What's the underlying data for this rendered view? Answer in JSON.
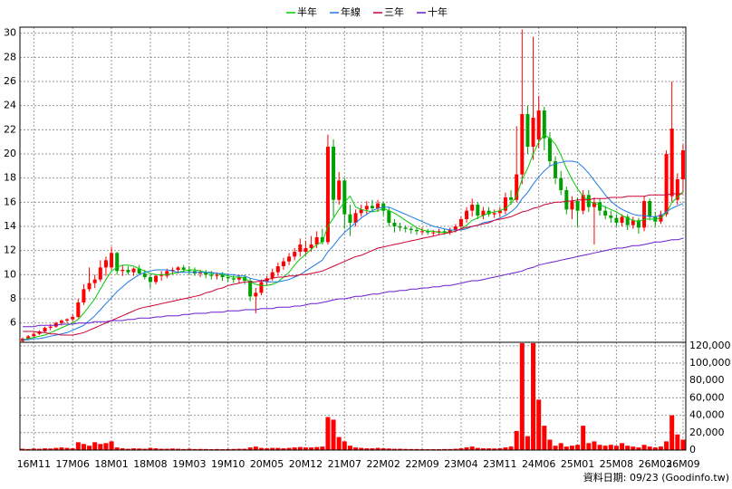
{
  "chart_data": {
    "type": "candlestick",
    "categories": [
      null,
      null,
      "16M11",
      null,
      null,
      null,
      null,
      null,
      null,
      "17M06",
      null,
      null,
      null,
      null,
      null,
      null,
      "18M01",
      null,
      null,
      null,
      null,
      null,
      null,
      "18M08",
      null,
      null,
      null,
      null,
      null,
      null,
      "19M03",
      null,
      null,
      null,
      null,
      null,
      null,
      "19M10",
      null,
      null,
      null,
      null,
      null,
      null,
      "20M05",
      null,
      null,
      null,
      null,
      null,
      null,
      "20M12",
      null,
      null,
      null,
      null,
      null,
      null,
      "21M07",
      null,
      null,
      null,
      null,
      null,
      null,
      "22M02",
      null,
      null,
      null,
      null,
      null,
      null,
      "22M09",
      null,
      null,
      null,
      null,
      null,
      null,
      "23M04",
      null,
      null,
      null,
      null,
      null,
      null,
      "23M11",
      null,
      null,
      null,
      null,
      null,
      null,
      "24M06",
      null,
      null,
      null,
      null,
      null,
      null,
      "25M01",
      null,
      null,
      null,
      null,
      null,
      null,
      "25M08",
      null,
      null,
      null,
      null,
      null,
      null,
      "26M03",
      null,
      null,
      null,
      null,
      "26M09"
    ],
    "open": [
      4.5,
      4.7,
      4.9,
      5.1,
      5.3,
      5.6,
      5.7,
      6.0,
      6.2,
      6.3,
      6.5,
      7.7,
      8.8,
      9.3,
      9.6,
      10.6,
      10.6,
      11.8,
      10.3,
      10.4,
      10.2,
      10.5,
      10.1,
      9.8,
      9.4,
      9.9,
      9.9,
      10.3,
      10.4,
      10.6,
      10.4,
      10.3,
      10.1,
      10.2,
      10.0,
      9.9,
      10.0,
      9.8,
      9.7,
      9.6,
      9.8,
      9.5,
      8.2,
      8.5,
      9.4,
      9.7,
      10.2,
      10.7,
      11.1,
      11.5,
      11.9,
      11.9,
      12.2,
      12.5,
      13.1,
      12.7,
      20.6,
      16.2,
      17.8,
      15.0,
      14.3,
      15.1,
      15.4,
      15.7,
      15.5,
      15.9,
      15.3,
      14.3,
      14.0,
      13.9,
      13.8,
      13.7,
      13.6,
      13.6,
      13.5,
      13.5,
      13.6,
      13.5,
      13.7,
      14.0,
      14.6,
      15.3,
      15.8,
      14.9,
      15.3,
      15.0,
      15.1,
      15.3,
      16.4,
      16.2,
      18.3,
      23.3,
      20.6,
      21.2,
      23.6,
      21.3,
      19.4,
      18.0,
      17.0,
      15.4,
      16.1,
      15.3,
      16.6,
      15.6,
      16.0,
      15.3,
      14.9,
      14.7,
      14.3,
      14.8,
      14.1,
      14.5,
      13.9,
      16.1,
      14.8,
      14.4,
      15.0,
      16.5,
      16.2,
      17.9
    ],
    "high": [
      4.8,
      5.0,
      5.2,
      5.4,
      5.7,
      5.9,
      6.1,
      6.3,
      6.4,
      6.7,
      8.0,
      9.2,
      10.6,
      10.0,
      11.2,
      11.5,
      12.3,
      11.9,
      10.8,
      10.7,
      10.6,
      10.8,
      10.4,
      10.0,
      10.0,
      10.3,
      10.5,
      10.6,
      10.7,
      10.8,
      10.7,
      10.6,
      10.4,
      10.4,
      10.3,
      10.2,
      10.2,
      10.1,
      10.0,
      10.0,
      10.0,
      9.7,
      8.9,
      9.6,
      9.9,
      10.5,
      11.0,
      11.4,
      11.8,
      12.2,
      13.0,
      12.8,
      13.2,
      13.6,
      13.8,
      21.6,
      21.2,
      18.5,
      18.0,
      15.8,
      15.4,
      15.8,
      16.1,
      16.2,
      16.2,
      16.0,
      15.6,
      14.6,
      14.3,
      14.1,
      14.0,
      13.9,
      13.9,
      13.8,
      13.7,
      13.8,
      13.8,
      13.9,
      14.2,
      14.8,
      15.6,
      16.3,
      16.0,
      15.6,
      15.6,
      15.4,
      15.6,
      16.8,
      17.0,
      22.3,
      30.3,
      24.0,
      29.7,
      24.8,
      23.9,
      21.8,
      19.8,
      18.6,
      17.3,
      16.5,
      16.4,
      17.0,
      17.0,
      16.4,
      16.3,
      15.7,
      15.3,
      15.0,
      15.0,
      15.0,
      14.8,
      14.7,
      16.5,
      16.3,
      15.2,
      15.3,
      20.3,
      26.0,
      18.4,
      20.8
    ],
    "low": [
      4.4,
      4.6,
      4.8,
      5.0,
      5.2,
      5.4,
      5.6,
      5.8,
      6.0,
      6.1,
      6.4,
      7.5,
      8.6,
      8.9,
      9.4,
      9.9,
      10.4,
      10.0,
      9.9,
      10.0,
      9.9,
      10.0,
      9.6,
      8.9,
      9.2,
      9.5,
      9.7,
      10.0,
      10.1,
      10.2,
      10.0,
      9.9,
      9.8,
      9.7,
      9.6,
      9.6,
      9.5,
      9.4,
      9.3,
      9.3,
      9.2,
      7.8,
      6.8,
      8.3,
      9.1,
      9.5,
      9.9,
      10.4,
      10.8,
      11.2,
      11.5,
      11.6,
      11.9,
      12.2,
      12.5,
      12.5,
      14.8,
      15.8,
      13.8,
      13.2,
      14.0,
      14.8,
      15.0,
      15.2,
      15.2,
      14.9,
      14.0,
      13.5,
      13.6,
      13.5,
      13.4,
      13.3,
      13.3,
      13.3,
      13.2,
      13.3,
      13.3,
      13.3,
      13.5,
      13.7,
      14.3,
      14.8,
      14.6,
      14.6,
      14.8,
      14.7,
      14.8,
      15.0,
      15.8,
      16.0,
      17.5,
      20.0,
      19.5,
      20.5,
      20.3,
      19.0,
      17.5,
      16.6,
      15.0,
      14.6,
      14.0,
      15.0,
      15.2,
      12.5,
      14.9,
      14.6,
      14.3,
      14.0,
      14.0,
      13.7,
      13.8,
      13.4,
      13.6,
      14.5,
      14.0,
      14.2,
      14.8,
      16.0,
      15.8,
      16.8
    ],
    "close": [
      4.7,
      4.9,
      5.1,
      5.3,
      5.6,
      5.7,
      6.0,
      6.2,
      6.3,
      6.5,
      7.7,
      8.8,
      9.3,
      9.6,
      10.6,
      11.2,
      11.8,
      10.3,
      10.4,
      10.2,
      10.5,
      10.1,
      9.8,
      9.4,
      9.9,
      10.0,
      10.3,
      10.4,
      10.6,
      10.4,
      10.3,
      10.1,
      10.2,
      10.0,
      9.9,
      10.0,
      9.8,
      9.7,
      9.6,
      9.8,
      9.5,
      8.2,
      8.5,
      9.4,
      9.7,
      10.2,
      10.7,
      11.1,
      11.5,
      11.9,
      12.5,
      12.2,
      12.5,
      13.1,
      12.7,
      20.6,
      16.2,
      17.8,
      15.0,
      14.3,
      15.1,
      15.4,
      15.7,
      15.5,
      15.9,
      15.3,
      14.3,
      14.0,
      13.9,
      13.8,
      13.7,
      13.6,
      13.6,
      13.5,
      13.5,
      13.6,
      13.5,
      13.7,
      14.0,
      14.6,
      15.3,
      15.8,
      14.9,
      15.3,
      15.0,
      15.1,
      15.3,
      16.4,
      16.2,
      18.3,
      23.3,
      20.6,
      23.0,
      23.6,
      21.3,
      19.4,
      18.0,
      17.0,
      15.4,
      16.1,
      15.3,
      16.6,
      15.6,
      16.0,
      15.3,
      14.9,
      14.7,
      14.3,
      14.8,
      14.1,
      14.5,
      13.9,
      16.1,
      14.8,
      14.4,
      15.0,
      20.0,
      22.1,
      17.9,
      20.3
    ],
    "up_color": "#ff0000",
    "down_color": "#00a000",
    "ylim": [
      4.4,
      30.5
    ],
    "yticks": [
      6,
      8,
      10,
      12,
      14,
      16,
      18,
      20,
      22,
      24,
      26,
      28,
      30
    ],
    "grid": true,
    "legend": "top",
    "series": [
      {
        "name": "半年",
        "color": "#00cc00",
        "values": [
          4.6,
          4.7,
          4.8,
          4.9,
          5.0,
          5.2,
          5.4,
          5.6,
          5.8,
          6.0,
          6.3,
          6.8,
          7.4,
          8.0,
          8.8,
          9.6,
          10.3,
          10.6,
          10.8,
          10.8,
          10.7,
          10.5,
          10.3,
          10.1,
          10.0,
          10.0,
          10.0,
          10.1,
          10.2,
          10.3,
          10.4,
          10.4,
          10.3,
          10.2,
          10.1,
          10.1,
          10.0,
          9.9,
          9.8,
          9.8,
          9.7,
          9.4,
          9.2,
          9.1,
          9.1,
          9.2,
          9.4,
          9.8,
          10.2,
          10.8,
          11.3,
          11.7,
          12.1,
          12.5,
          12.7,
          14.0,
          14.7,
          15.4,
          16.0,
          16.5,
          15.6,
          15.4,
          15.3,
          15.2,
          15.3,
          15.5,
          15.3,
          15.1,
          14.8,
          14.5,
          14.2,
          13.9,
          13.7,
          13.6,
          13.6,
          13.5,
          13.5,
          13.5,
          13.6,
          13.8,
          14.1,
          14.5,
          14.7,
          14.9,
          15.1,
          15.2,
          15.3,
          15.5,
          15.9,
          16.5,
          17.9,
          18.8,
          20.0,
          21.0,
          21.6,
          21.3,
          20.8,
          19.9,
          18.8,
          17.9,
          17.1,
          16.5,
          16.1,
          15.9,
          15.8,
          15.6,
          15.4,
          15.2,
          14.9,
          14.7,
          14.5,
          14.4,
          14.6,
          14.6,
          14.6,
          14.7,
          15.1,
          16.0,
          16.4,
          16.9
        ]
      },
      {
        "name": "年線",
        "color": "#1e78e6",
        "values": [
          4.6,
          4.6,
          4.7,
          4.7,
          4.8,
          4.9,
          5.0,
          5.1,
          5.2,
          5.4,
          5.6,
          5.8,
          6.2,
          6.6,
          7.1,
          7.6,
          8.1,
          8.6,
          9.0,
          9.4,
          9.7,
          10.0,
          10.2,
          10.3,
          10.4,
          10.4,
          10.4,
          10.3,
          10.2,
          10.2,
          10.2,
          10.2,
          10.2,
          10.2,
          10.2,
          10.1,
          10.1,
          10.0,
          10.0,
          9.9,
          9.9,
          9.7,
          9.6,
          9.5,
          9.4,
          9.4,
          9.4,
          9.5,
          9.6,
          9.8,
          10.0,
          10.3,
          10.6,
          10.9,
          11.2,
          11.9,
          12.4,
          13.0,
          13.5,
          13.9,
          14.3,
          14.7,
          15.0,
          15.3,
          15.5,
          15.6,
          15.6,
          15.4,
          15.2,
          15.0,
          14.8,
          14.6,
          14.4,
          14.2,
          14.0,
          13.9,
          13.8,
          13.7,
          13.7,
          13.7,
          13.8,
          14.0,
          14.1,
          14.3,
          14.4,
          14.5,
          14.7,
          14.9,
          15.2,
          15.6,
          16.3,
          16.8,
          17.5,
          18.1,
          18.6,
          19.0,
          19.2,
          19.3,
          19.4,
          19.4,
          19.3,
          18.9,
          18.4,
          17.8,
          17.2,
          16.6,
          16.1,
          15.7,
          15.4,
          15.2,
          15.0,
          14.9,
          14.9,
          14.8,
          14.8,
          14.9,
          15.2,
          15.5,
          15.7,
          15.9
        ]
      },
      {
        "name": "三年",
        "color": "#cc0033",
        "values": [
          5.3,
          5.3,
          5.3,
          5.2,
          5.2,
          5.1,
          5.1,
          5.0,
          5.0,
          5.0,
          5.1,
          5.2,
          5.4,
          5.6,
          5.8,
          6.0,
          6.2,
          6.4,
          6.6,
          6.8,
          7.0,
          7.2,
          7.3,
          7.4,
          7.5,
          7.6,
          7.7,
          7.8,
          7.9,
          8.0,
          8.1,
          8.2,
          8.3,
          8.5,
          8.6,
          8.8,
          8.9,
          9.1,
          9.2,
          9.3,
          9.4,
          9.4,
          9.4,
          9.5,
          9.6,
          9.7,
          9.8,
          9.8,
          9.9,
          9.9,
          10.0,
          10.0,
          10.1,
          10.2,
          10.3,
          10.5,
          10.7,
          10.9,
          11.1,
          11.3,
          11.5,
          11.6,
          11.8,
          12.0,
          12.2,
          12.3,
          12.4,
          12.5,
          12.6,
          12.7,
          12.8,
          12.9,
          13.0,
          13.1,
          13.2,
          13.3,
          13.4,
          13.5,
          13.6,
          13.8,
          13.9,
          14.0,
          14.1,
          14.2,
          14.3,
          14.5,
          14.6,
          14.7,
          14.8,
          15.0,
          15.2,
          15.3,
          15.5,
          15.6,
          15.8,
          15.9,
          16.0,
          16.0,
          16.1,
          16.1,
          16.2,
          16.2,
          16.2,
          16.3,
          16.3,
          16.3,
          16.4,
          16.4,
          16.4,
          16.5,
          16.5,
          16.5,
          16.5,
          16.6,
          16.6,
          16.6,
          16.6,
          16.7,
          16.7,
          16.7
        ]
      },
      {
        "name": "十年",
        "color": "#6a1ecc",
        "values": [
          5.7,
          5.7,
          5.7,
          5.8,
          5.8,
          5.8,
          5.8,
          5.9,
          5.9,
          5.9,
          6.0,
          6.0,
          6.0,
          6.1,
          6.1,
          6.1,
          6.2,
          6.2,
          6.2,
          6.3,
          6.3,
          6.4,
          6.4,
          6.4,
          6.5,
          6.5,
          6.6,
          6.6,
          6.6,
          6.7,
          6.7,
          6.8,
          6.8,
          6.8,
          6.9,
          6.9,
          6.9,
          7.0,
          7.0,
          7.0,
          7.1,
          7.1,
          7.1,
          7.2,
          7.2,
          7.2,
          7.3,
          7.3,
          7.3,
          7.4,
          7.4,
          7.5,
          7.6,
          7.6,
          7.7,
          7.8,
          7.9,
          8.0,
          8.0,
          8.1,
          8.2,
          8.2,
          8.3,
          8.4,
          8.4,
          8.5,
          8.6,
          8.6,
          8.7,
          8.7,
          8.8,
          8.8,
          8.9,
          8.9,
          9.0,
          9.0,
          9.1,
          9.1,
          9.2,
          9.3,
          9.4,
          9.5,
          9.5,
          9.6,
          9.7,
          9.8,
          9.9,
          10.0,
          10.1,
          10.2,
          10.3,
          10.5,
          10.6,
          10.8,
          10.9,
          11.0,
          11.1,
          11.2,
          11.3,
          11.4,
          11.5,
          11.6,
          11.7,
          11.8,
          11.9,
          12.0,
          12.1,
          12.2,
          12.2,
          12.3,
          12.4,
          12.4,
          12.5,
          12.6,
          12.7,
          12.7,
          12.8,
          12.9,
          12.9,
          13.0
        ]
      }
    ],
    "volume": {
      "color": "#ff0000",
      "values": [
        1500,
        1200,
        1800,
        1500,
        2000,
        1800,
        2500,
        3000,
        2500,
        2000,
        9000,
        7000,
        5000,
        9000,
        7000,
        8000,
        10000,
        3000,
        2000,
        1500,
        2000,
        1800,
        1500,
        2500,
        2000,
        1500,
        1500,
        1800,
        1500,
        1200,
        1500,
        1200,
        1300,
        1200,
        1000,
        1200,
        1000,
        1200,
        1300,
        1500,
        1500,
        3000,
        4000,
        2500,
        2000,
        2500,
        2500,
        2000,
        2500,
        3000,
        3500,
        3000,
        3000,
        3500,
        4000,
        38000,
        35000,
        15000,
        10000,
        5000,
        3000,
        2500,
        2000,
        2000,
        2500,
        2000,
        1800,
        1500,
        1500,
        1300,
        1200,
        1200,
        1000,
        1000,
        1000,
        1000,
        1200,
        1200,
        1500,
        2000,
        3000,
        4000,
        2500,
        2000,
        2000,
        1800,
        2000,
        3000,
        4000,
        22000,
        123000,
        16000,
        123000,
        58000,
        28000,
        12000,
        5000,
        8000,
        4000,
        5000,
        6000,
        28000,
        8000,
        10000,
        6000,
        5000,
        6000,
        5000,
        8000,
        5000,
        4000,
        3000,
        6000,
        4000,
        3000,
        4000,
        10000,
        40000,
        18000,
        12000
      ],
      "ylim": [
        0,
        124000
      ],
      "yticks": [
        0,
        {
          "value": 20000,
          "label": "20,000"
        },
        {
          "value": 40000,
          "label": "40,000"
        },
        {
          "value": 60000,
          "label": "60,000"
        },
        {
          "value": 80000,
          "label": "80,000"
        },
        {
          "value": 100000,
          "label": "100,000"
        },
        {
          "value": 120000,
          "label": "120,000"
        }
      ]
    },
    "source_note": "資料日期: 09/23 (Goodinfo.tw)"
  }
}
